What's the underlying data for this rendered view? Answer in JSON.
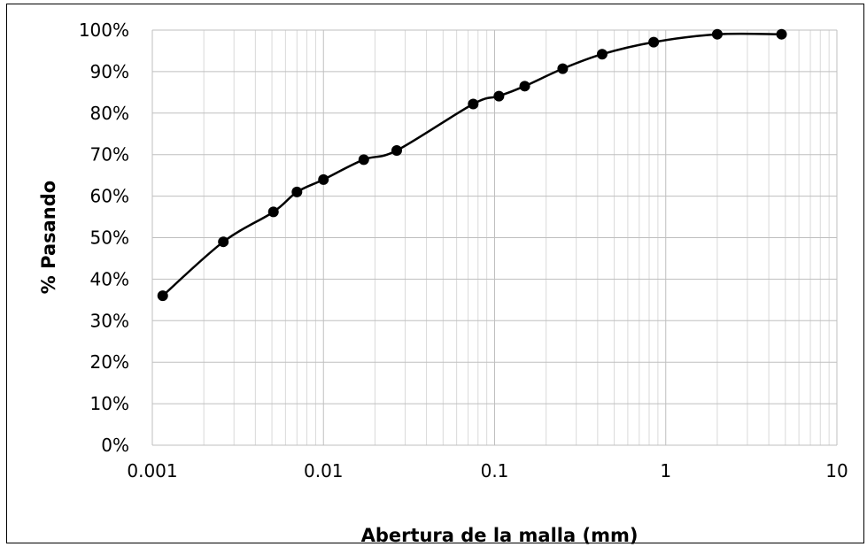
{
  "chart_data": {
    "type": "line",
    "xscale": "log",
    "xlim": [
      0.001,
      10
    ],
    "ylim": [
      0,
      100
    ],
    "xlabel": "Abertura de la malla (mm)",
    "ylabel": "% Pasando",
    "xticks": [
      "0.001",
      "0.01",
      "0.1",
      "1",
      "10"
    ],
    "yticks": [
      "0%",
      "10%",
      "20%",
      "30%",
      "40%",
      "50%",
      "60%",
      "70%",
      "80%",
      "90%",
      "100%"
    ],
    "grid": true,
    "legend": "none",
    "series": [
      {
        "color": "#000000",
        "marker": "circle",
        "smooth": true,
        "points": [
          {
            "x": 0.00115,
            "y": 36
          },
          {
            "x": 0.0026,
            "y": 49
          },
          {
            "x": 0.0051,
            "y": 56.2
          },
          {
            "x": 0.007,
            "y": 61
          },
          {
            "x": 0.01,
            "y": 64
          },
          {
            "x": 0.0172,
            "y": 68.8
          },
          {
            "x": 0.0268,
            "y": 71
          },
          {
            "x": 0.075,
            "y": 82.2
          },
          {
            "x": 0.106,
            "y": 84.1
          },
          {
            "x": 0.15,
            "y": 86.5
          },
          {
            "x": 0.25,
            "y": 90.7
          },
          {
            "x": 0.425,
            "y": 94.2
          },
          {
            "x": 0.85,
            "y": 97.1
          },
          {
            "x": 2.0,
            "y": 99
          },
          {
            "x": 4.75,
            "y": 99
          }
        ]
      }
    ]
  }
}
